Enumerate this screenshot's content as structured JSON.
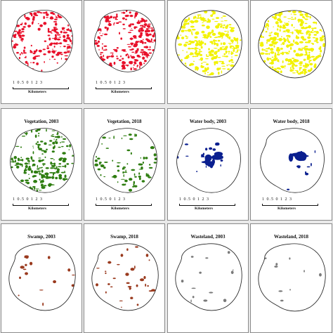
{
  "panels": [
    {
      "title": "",
      "color": "#e8102a",
      "density": 0.85,
      "cluster": "left-ring",
      "scalebar": true
    },
    {
      "title": "",
      "color": "#e8102a",
      "density": 1.0,
      "cluster": "left-ring",
      "scalebar": true
    },
    {
      "title": "",
      "color": "#f2f200",
      "density": 0.95,
      "cluster": "spread",
      "scalebar": false
    },
    {
      "title": "",
      "color": "#f2f200",
      "density": 1.0,
      "cluster": "spread",
      "scalebar": false
    },
    {
      "title": "Vegetation, 2003",
      "color": "#2e7d10",
      "density": 0.85,
      "cluster": "south",
      "scalebar": true
    },
    {
      "title": "Vegetation, 2018",
      "color": "#2e7d10",
      "density": 0.55,
      "cluster": "south",
      "scalebar": true
    },
    {
      "title": "Water body, 2003",
      "color": "#0a1f8f",
      "density": 0.45,
      "cluster": "center",
      "scalebar": true
    },
    {
      "title": "Water body, 2018",
      "color": "#0a1f8f",
      "density": 0.35,
      "cluster": "center",
      "scalebar": true
    },
    {
      "title": "Swamp, 2003",
      "color": "#9a3a1e",
      "density": 0.25,
      "cluster": "sparse",
      "scalebar": false
    },
    {
      "title": "Swamp, 2018",
      "color": "#9a3a1e",
      "density": 0.35,
      "cluster": "sparse",
      "scalebar": false
    },
    {
      "title": "Wasteland, 2003",
      "color": "#7a7a7a",
      "density": 0.22,
      "cluster": "sparse",
      "scalebar": false
    },
    {
      "title": "Wasteland, 2018",
      "color": "#7a7a7a",
      "density": 0.2,
      "cluster": "sparse",
      "scalebar": false
    }
  ],
  "scalebar": {
    "ticks": "1 0.5 0   1   2   3",
    "unit": "Kilometers"
  }
}
